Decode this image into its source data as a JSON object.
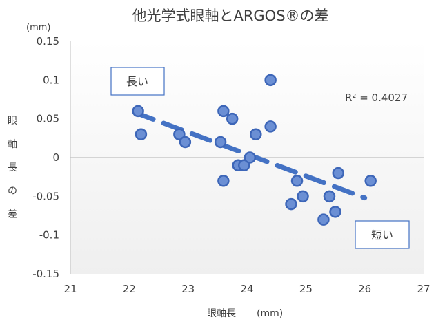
{
  "chart_data": {
    "type": "scatter",
    "title": "他光学式眼軸とARGOS®の差",
    "xlabel": "眼軸長",
    "xunit": "(mm)",
    "ylabel": "眼軸長の差",
    "yunit": "(mm)",
    "xlim": [
      21,
      27
    ],
    "ylim": [
      -0.15,
      0.15
    ],
    "xticks": [
      "21",
      "22",
      "23",
      "24",
      "25",
      "26",
      "27"
    ],
    "yticks": [
      "0.15",
      "0.1",
      "0.05",
      "0",
      "-0.05",
      "-0.1",
      "-0.15"
    ],
    "grid": false,
    "points": [
      {
        "x": 22.15,
        "y": 0.06
      },
      {
        "x": 22.2,
        "y": 0.03
      },
      {
        "x": 22.85,
        "y": 0.03
      },
      {
        "x": 22.95,
        "y": 0.02
      },
      {
        "x": 23.6,
        "y": 0.06
      },
      {
        "x": 23.75,
        "y": 0.05
      },
      {
        "x": 23.55,
        "y": 0.02
      },
      {
        "x": 23.6,
        "y": -0.03
      },
      {
        "x": 23.85,
        "y": -0.01
      },
      {
        "x": 23.95,
        "y": -0.01
      },
      {
        "x": 24.05,
        "y": 0.0
      },
      {
        "x": 24.15,
        "y": 0.03
      },
      {
        "x": 24.4,
        "y": 0.1
      },
      {
        "x": 24.4,
        "y": 0.04
      },
      {
        "x": 24.85,
        "y": -0.03
      },
      {
        "x": 24.75,
        "y": -0.06
      },
      {
        "x": 24.95,
        "y": -0.05
      },
      {
        "x": 25.3,
        "y": -0.08
      },
      {
        "x": 25.4,
        "y": -0.05
      },
      {
        "x": 25.5,
        "y": -0.07
      },
      {
        "x": 25.55,
        "y": -0.02
      },
      {
        "x": 26.1,
        "y": -0.03
      }
    ],
    "trendline": {
      "x": [
        22.1,
        26.0
      ],
      "y": [
        0.058,
        -0.052
      ]
    },
    "r_squared_label": "R² = 0.4027",
    "annotations": [
      "長い",
      "短い"
    ],
    "colors": {
      "marker_fill": "#6b8fd4",
      "marker_stroke": "#3d66b8",
      "trend": "#4472c4",
      "plot_bg": "#f2f2f2"
    }
  }
}
